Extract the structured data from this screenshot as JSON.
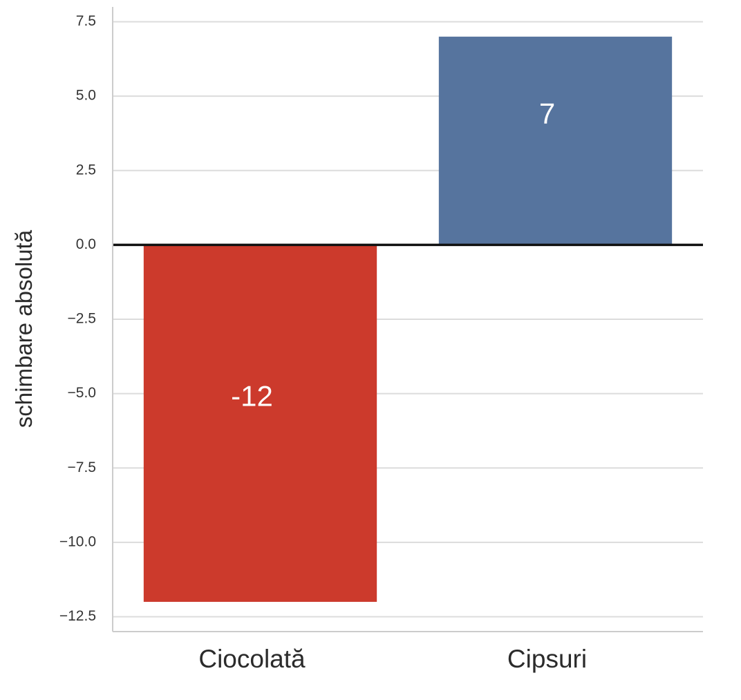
{
  "chart_data": {
    "type": "bar",
    "title": "",
    "xlabel": "",
    "ylabel": "schimbare absolută",
    "categories": [
      "Ciocolată",
      "Cipsuri"
    ],
    "values": [
      -12,
      7
    ],
    "data_labels": [
      "-12",
      "7"
    ],
    "bar_colors": [
      "#cc3a2c",
      "#56749e"
    ],
    "ylim": [
      -13,
      8
    ],
    "yticks": [
      7.5,
      5.0,
      2.5,
      0.0,
      -2.5,
      -5.0,
      -7.5,
      -10.0,
      -12.5
    ],
    "ytick_labels": [
      "7.5",
      "5.0",
      "2.5",
      "0.0",
      "−2.5",
      "−5.0",
      "−7.5",
      "−10.0",
      "−12.5"
    ],
    "grid": true,
    "zero_line": true,
    "legend": "none"
  },
  "colors": {
    "grid": "#dcdcdc",
    "zero_line": "#111111",
    "spine": "#cccccc"
  }
}
